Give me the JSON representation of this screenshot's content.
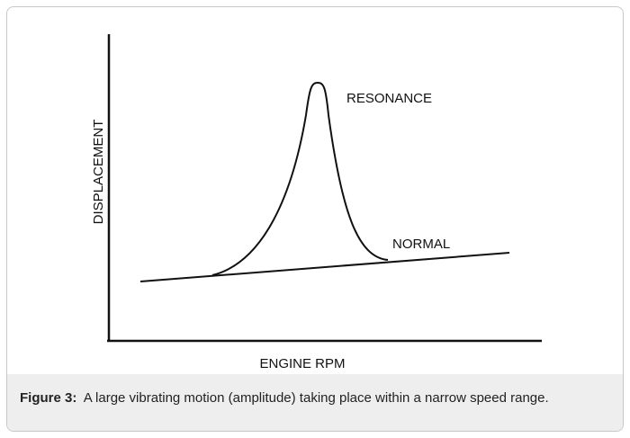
{
  "figure": {
    "y_axis_label": "DISPLACEMENT",
    "x_axis_label": "ENGINE RPM",
    "annotations": [
      "RESONANCE",
      "NORMAL"
    ],
    "caption": {
      "label": "Figure 3:",
      "text": "A large vibrating motion (amplitude) taking place within a narrow speed range."
    }
  }
}
